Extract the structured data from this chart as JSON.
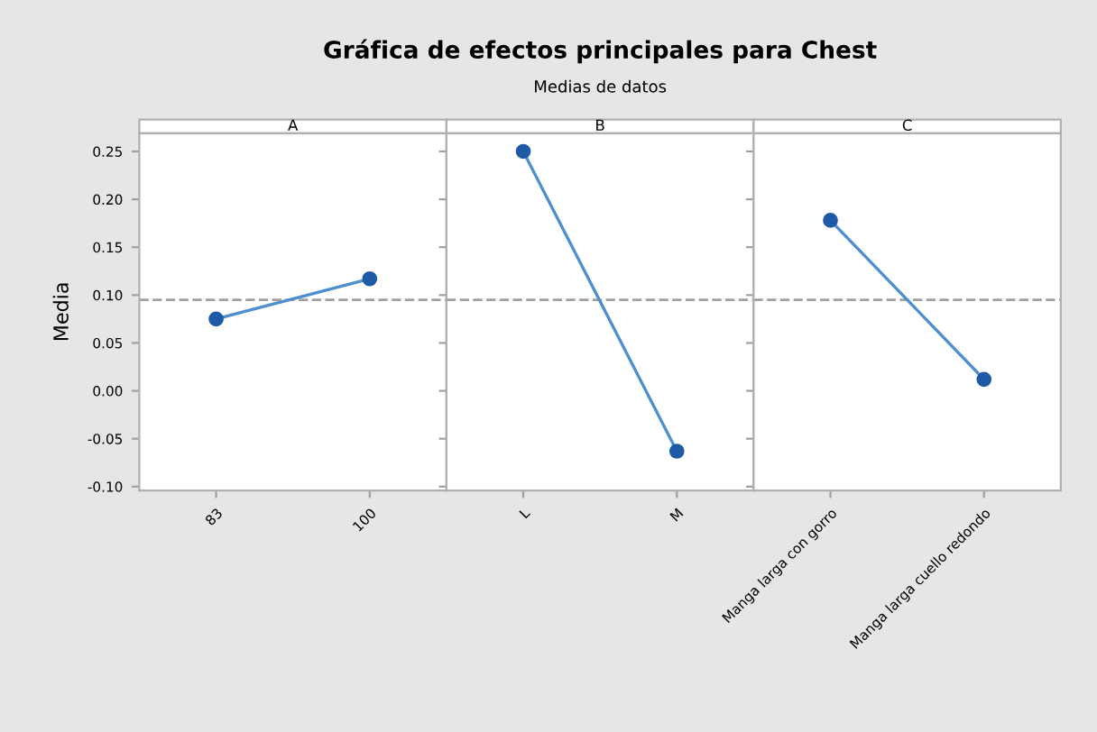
{
  "chart_data": [
    {
      "type": "line",
      "title": "A",
      "ylabel": "Media",
      "annotations": [
        "Gráfica de efectos principales para Chest",
        "Medias de datos"
      ],
      "categories": [
        "83",
        "100"
      ],
      "series": [
        {
          "color": "#1f5aa6",
          "values": [
            0.075,
            0.117
          ]
        }
      ],
      "ylim": [
        -0.104,
        0.269
      ],
      "yticks": [
        {
          "value": -0.1,
          "label": "-0.10"
        },
        {
          "value": -0.05,
          "label": "-0.05"
        },
        {
          "value": 0,
          "label": "0.00"
        },
        {
          "value": 0.05,
          "label": "0.05"
        },
        {
          "value": 0.1,
          "label": "0.10"
        },
        {
          "value": 0.15,
          "label": "0.15"
        },
        {
          "value": 0.2,
          "label": "0.20"
        },
        {
          "value": 0.25,
          "label": "0.25"
        }
      ],
      "marker": "circle",
      "line_style": "solid",
      "grid": false,
      "legend": false,
      "ref_lines": [
        {
          "axis": "y",
          "value": 0.095,
          "color": "#a0a0a0",
          "line_style": "dashed"
        }
      ]
    },
    {
      "type": "line",
      "title": "B",
      "categories": [
        "L",
        "M"
      ],
      "series": [
        {
          "color": "#1f5aa6",
          "values": [
            0.25,
            -0.063
          ]
        }
      ],
      "ylim": [
        -0.104,
        0.269
      ],
      "tick_labels": "x",
      "marker": "circle",
      "line_style": "solid",
      "grid": false,
      "legend": false,
      "ref_lines": [
        {
          "axis": "y",
          "value": 0.095,
          "color": "#a0a0a0",
          "line_style": "dashed"
        }
      ]
    },
    {
      "type": "line",
      "title": "C",
      "categories": [
        "Manga larga con gorro",
        "Manga larga cuello redondo"
      ],
      "series": [
        {
          "color": "#1f5aa6",
          "values": [
            0.178,
            0.012
          ]
        }
      ],
      "ylim": [
        -0.104,
        0.269
      ],
      "tick_labels": "x",
      "marker": "circle",
      "line_style": "solid",
      "grid": false,
      "legend": false,
      "ref_lines": [
        {
          "axis": "y",
          "value": 0.095,
          "color": "#a0a0a0",
          "line_style": "dashed"
        }
      ]
    }
  ]
}
